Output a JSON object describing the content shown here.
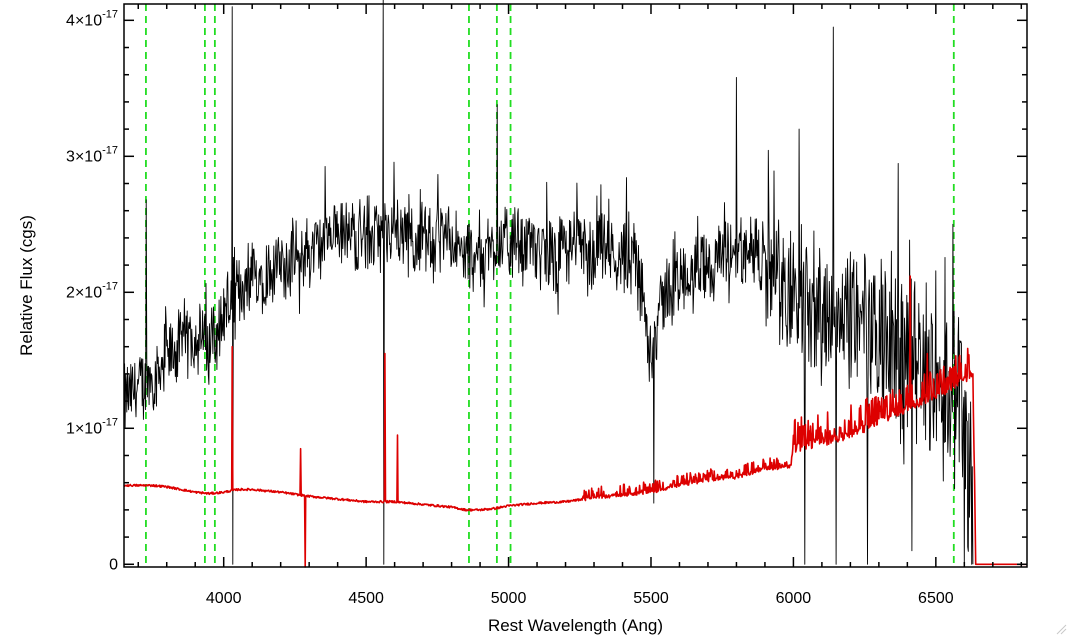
{
  "chart_data": {
    "type": "line",
    "xlabel": "Rest Wavelength (Ang)",
    "ylabel": "Relative Flux (cgs)",
    "xlim": [
      3650,
      6820
    ],
    "ylim": [
      -2e-19,
      4.12e-17
    ],
    "x_ticks": [
      {
        "value": 4000,
        "label": "4000"
      },
      {
        "value": 4500,
        "label": "4500"
      },
      {
        "value": 5000,
        "label": "5000"
      },
      {
        "value": 5500,
        "label": "5500"
      },
      {
        "value": 6000,
        "label": "6000"
      },
      {
        "value": 6500,
        "label": "6500"
      }
    ],
    "y_ticks": [
      {
        "value": 0,
        "mant": "0",
        "exp": ""
      },
      {
        "value": 1e-17,
        "mant": "1×10",
        "exp": "-17"
      },
      {
        "value": 2e-17,
        "mant": "2×10",
        "exp": "-17"
      },
      {
        "value": 3e-17,
        "mant": "3×10",
        "exp": "-17"
      },
      {
        "value": 4e-17,
        "mant": "4×10",
        "exp": "-17"
      }
    ],
    "x_minor_step": 100,
    "y_minor_step": 2e-18,
    "grid": false,
    "vlines": {
      "color": "#22dd22",
      "style": "dashed",
      "positions": [
        3727,
        3934,
        3969,
        4861,
        4959,
        5007,
        6563
      ]
    },
    "series": [
      {
        "color": "#000000",
        "style": "noisy",
        "x": [
          3650,
          3700,
          3750,
          3800,
          3850,
          3900,
          3950,
          4000,
          4050,
          4100,
          4200,
          4300,
          4400,
          4500,
          4550,
          4600,
          4700,
          4800,
          4850,
          4900,
          4950,
          5000,
          5100,
          5200,
          5300,
          5400,
          5450,
          5500,
          5550,
          5600,
          5700,
          5800,
          5900,
          6000,
          6100,
          6200,
          6300,
          6400,
          6500,
          6600,
          6620,
          6630
        ],
        "y": [
          1.2e-17,
          1.3e-17,
          1.38e-17,
          1.5e-17,
          1.6e-17,
          1.7e-17,
          1.6e-17,
          1.85e-17,
          2e-17,
          2.1e-17,
          2.2e-17,
          2.3e-17,
          2.4e-17,
          2.45e-17,
          2.4e-17,
          2.45e-17,
          2.4e-17,
          2.35e-17,
          2.25e-17,
          2.3e-17,
          2.35e-17,
          2.35e-17,
          2.3e-17,
          2.3e-17,
          2.3e-17,
          2.25e-17,
          2.2e-17,
          1.6e-17,
          2e-17,
          2.1e-17,
          2.2e-17,
          2.3e-17,
          2.2e-17,
          2e-17,
          1.9e-17,
          1.8e-17,
          1.7e-17,
          1.5e-17,
          1.4e-17,
          1.2e-17,
          6e-18,
          0.0
        ],
        "spikes": [
          {
            "x": 3727,
            "y": 2.68e-17
          },
          {
            "x": 4030,
            "y": 4.1e-17
          },
          {
            "x": 4032,
            "y": 0.0
          },
          {
            "x": 4560,
            "y": 4.15e-17
          },
          {
            "x": 4562,
            "y": 0.0
          },
          {
            "x": 4960,
            "y": 3.38e-17
          },
          {
            "x": 5510,
            "y": 4.5e-18
          },
          {
            "x": 5800,
            "y": 3.58e-17
          },
          {
            "x": 6020,
            "y": 3.2e-17
          },
          {
            "x": 6040,
            "y": 0.0
          },
          {
            "x": 6140,
            "y": 3.95e-17
          },
          {
            "x": 6150,
            "y": 0.0
          },
          {
            "x": 6260,
            "y": 0.0
          },
          {
            "x": 6415,
            "y": 1e-18
          },
          {
            "x": 6560,
            "y": 2.5e-17
          },
          {
            "x": 6600,
            "y": 0.0
          }
        ]
      },
      {
        "color": "#dd0000",
        "style": "model",
        "x": [
          3650,
          3700,
          3750,
          3800,
          3900,
          3950,
          4000,
          4050,
          4100,
          4200,
          4300,
          4400,
          4500,
          4600,
          4700,
          4800,
          4850,
          4900,
          4950,
          5000,
          5100,
          5200,
          5300,
          5400,
          5500,
          5600,
          5700,
          5800,
          5900,
          5990,
          6000,
          6100,
          6200,
          6300,
          6400,
          6500,
          6600,
          6630,
          6640,
          6820
        ],
        "y": [
          5.8e-18,
          5.8e-18,
          5.8e-18,
          5.7e-18,
          5.3e-18,
          5.2e-18,
          5.3e-18,
          5.5e-18,
          5.5e-18,
          5.3e-18,
          5e-18,
          4.8e-18,
          4.6e-18,
          4.6e-18,
          4.4e-18,
          4.2e-18,
          4e-18,
          4e-18,
          4.1e-18,
          4.3e-18,
          4.5e-18,
          4.6e-18,
          4.9e-18,
          5.1e-18,
          5.3e-18,
          5.8e-18,
          6.2e-18,
          6.4e-18,
          7e-18,
          7.2e-18,
          8.5e-18,
          9e-18,
          9.5e-18,
          1.05e-17,
          1.15e-17,
          1.25e-17,
          1.35e-17,
          1.4e-17,
          0.0,
          0.0
        ],
        "spikes": [
          {
            "x": 4030,
            "y": 1.6e-17
          },
          {
            "x": 4270,
            "y": 8.5e-18
          },
          {
            "x": 4285,
            "y": -2e-19
          },
          {
            "x": 4565,
            "y": 1.55e-17
          },
          {
            "x": 4610,
            "y": 9.5e-18
          },
          {
            "x": 6410,
            "y": 2.12e-17
          },
          {
            "x": 6470,
            "y": 1.55e-17
          }
        ]
      }
    ]
  }
}
